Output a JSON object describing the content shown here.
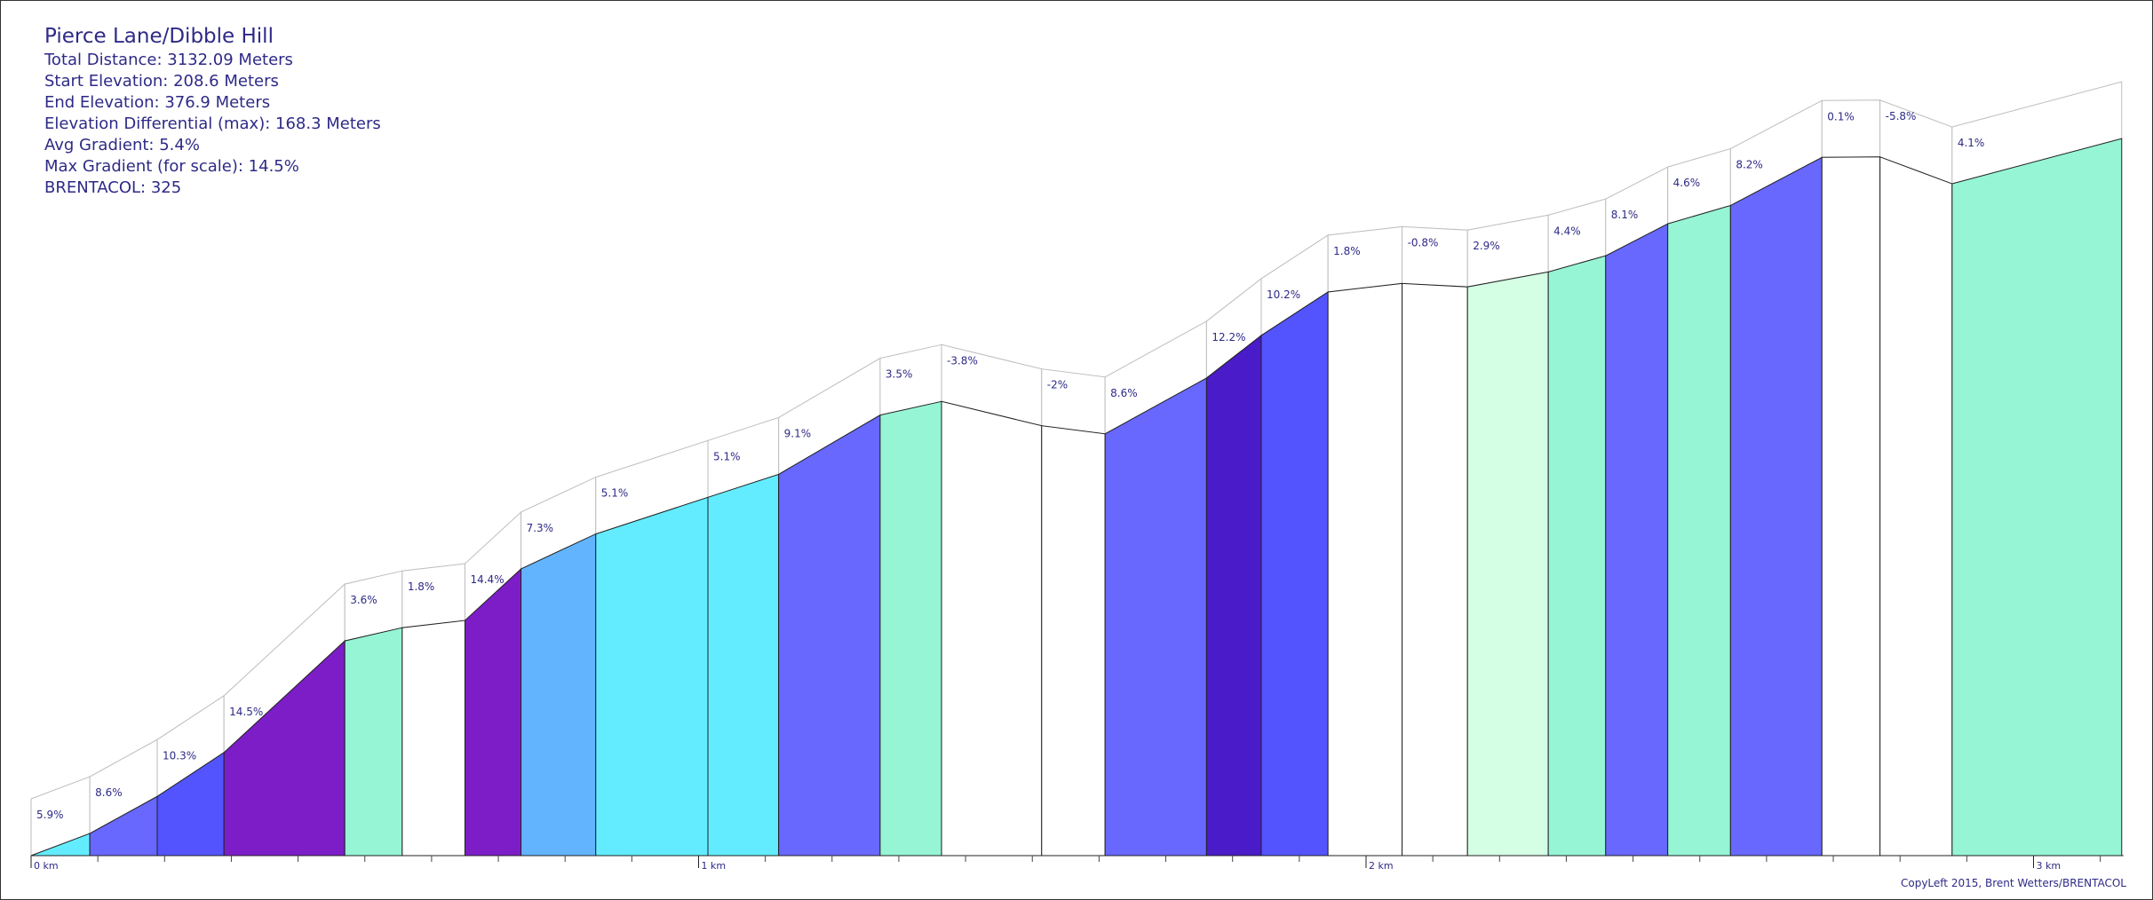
{
  "info": {
    "title": "Pierce Lane/Dibble Hill",
    "total_distance": "Total Distance: 3132.09 Meters",
    "start_elevation": "Start Elevation: 208.6 Meters",
    "end_elevation": "End Elevation: 376.9 Meters",
    "elevation_differential": "Elevation Differential (max): 168.3 Meters",
    "avg_gradient": "Avg Gradient: 5.4%",
    "max_gradient": "Max Gradient (for scale): 14.5%",
    "brentacol": "BRENTACOL: 325"
  },
  "copyleft": "CopyLeft 2015, Brent Wetters/BRENTACOL",
  "chart_data": {
    "type": "area",
    "title": "Pierce Lane/Dibble Hill",
    "x_unit": "m",
    "y_unit": "m",
    "xlim": [
      0,
      3132.09
    ],
    "x_tick_labels": [
      "0 km",
      "1 km",
      "2 km",
      "3 km"
    ],
    "x_ticks_km": [
      0,
      1,
      2,
      3
    ],
    "segments": [
      {
        "start_m": 0,
        "end_m": 88,
        "start_elev": 208.6,
        "end_elev": 213.8,
        "gradient": "5.9%",
        "color": "#63ecff"
      },
      {
        "start_m": 88,
        "end_m": 189,
        "start_elev": 213.8,
        "end_elev": 222.5,
        "gradient": "8.6%",
        "color": "#6868ff"
      },
      {
        "start_m": 189,
        "end_m": 289,
        "start_elev": 222.5,
        "end_elev": 232.8,
        "gradient": "10.3%",
        "color": "#5454ff"
      },
      {
        "start_m": 289,
        "end_m": 470,
        "start_elev": 232.8,
        "end_elev": 259.0,
        "gradient": "14.5%",
        "color": "#7d1dc8"
      },
      {
        "start_m": 470,
        "end_m": 556,
        "start_elev": 259.0,
        "end_elev": 262.1,
        "gradient": "3.6%",
        "color": "#96f5d5"
      },
      {
        "start_m": 556,
        "end_m": 650,
        "start_elev": 262.1,
        "end_elev": 263.8,
        "gradient": "1.8%",
        "color": "#ffffff"
      },
      {
        "start_m": 650,
        "end_m": 734,
        "start_elev": 263.8,
        "end_elev": 275.9,
        "gradient": "14.4%",
        "color": "#7d1dc8"
      },
      {
        "start_m": 734,
        "end_m": 846,
        "start_elev": 275.9,
        "end_elev": 284.1,
        "gradient": "7.3%",
        "color": "#63b4ff"
      },
      {
        "start_m": 846,
        "end_m": 1014,
        "start_elev": 284.1,
        "end_elev": 292.7,
        "gradient": "5.1%",
        "color": "#63ecff"
      },
      {
        "start_m": 1014,
        "end_m": 1120,
        "start_elev": 292.7,
        "end_elev": 298.1,
        "gradient": "5.1%",
        "color": "#63ecff"
      },
      {
        "start_m": 1120,
        "end_m": 1272,
        "start_elev": 298.1,
        "end_elev": 312.0,
        "gradient": "9.1%",
        "color": "#6868ff"
      },
      {
        "start_m": 1272,
        "end_m": 1364,
        "start_elev": 312.0,
        "end_elev": 315.2,
        "gradient": "3.5%",
        "color": "#96f5d5"
      },
      {
        "start_m": 1364,
        "end_m": 1514,
        "start_elev": 315.2,
        "end_elev": 309.5,
        "gradient": "-3.8%",
        "color": "#ffffff"
      },
      {
        "start_m": 1514,
        "end_m": 1609,
        "start_elev": 309.5,
        "end_elev": 307.6,
        "gradient": "-2%",
        "color": "#ffffff"
      },
      {
        "start_m": 1609,
        "end_m": 1761,
        "start_elev": 307.6,
        "end_elev": 320.7,
        "gradient": "8.6%",
        "color": "#6868ff"
      },
      {
        "start_m": 1761,
        "end_m": 1843,
        "start_elev": 320.7,
        "end_elev": 330.7,
        "gradient": "12.2%",
        "color": "#4a1bc8"
      },
      {
        "start_m": 1843,
        "end_m": 1943,
        "start_elev": 330.7,
        "end_elev": 340.9,
        "gradient": "10.2%",
        "color": "#5454ff"
      },
      {
        "start_m": 1943,
        "end_m": 2054,
        "start_elev": 340.9,
        "end_elev": 342.9,
        "gradient": "1.8%",
        "color": "#ffffff"
      },
      {
        "start_m": 2054,
        "end_m": 2152,
        "start_elev": 342.9,
        "end_elev": 342.1,
        "gradient": "-0.8%",
        "color": "#ffffff"
      },
      {
        "start_m": 2152,
        "end_m": 2273,
        "start_elev": 342.1,
        "end_elev": 345.6,
        "gradient": "2.9%",
        "color": "#d4ffe5"
      },
      {
        "start_m": 2273,
        "end_m": 2359,
        "start_elev": 345.6,
        "end_elev": 349.4,
        "gradient": "4.4%",
        "color": "#96f5d5"
      },
      {
        "start_m": 2359,
        "end_m": 2452,
        "start_elev": 349.4,
        "end_elev": 356.9,
        "gradient": "8.1%",
        "color": "#6868ff"
      },
      {
        "start_m": 2452,
        "end_m": 2546,
        "start_elev": 356.9,
        "end_elev": 361.2,
        "gradient": "4.6%",
        "color": "#96f5d5"
      },
      {
        "start_m": 2546,
        "end_m": 2683,
        "start_elev": 361.2,
        "end_elev": 372.5,
        "gradient": "8.2%",
        "color": "#6868ff"
      },
      {
        "start_m": 2683,
        "end_m": 2770,
        "start_elev": 372.5,
        "end_elev": 372.6,
        "gradient": "0.1%",
        "color": "#ffffff"
      },
      {
        "start_m": 2770,
        "end_m": 2878,
        "start_elev": 372.6,
        "end_elev": 366.3,
        "gradient": "-5.8%",
        "color": "#ffffff"
      },
      {
        "start_m": 2878,
        "end_m": 3132.09,
        "start_elev": 366.3,
        "end_elev": 376.9,
        "gradient": "4.1%",
        "color": "#96f5d5"
      }
    ]
  }
}
